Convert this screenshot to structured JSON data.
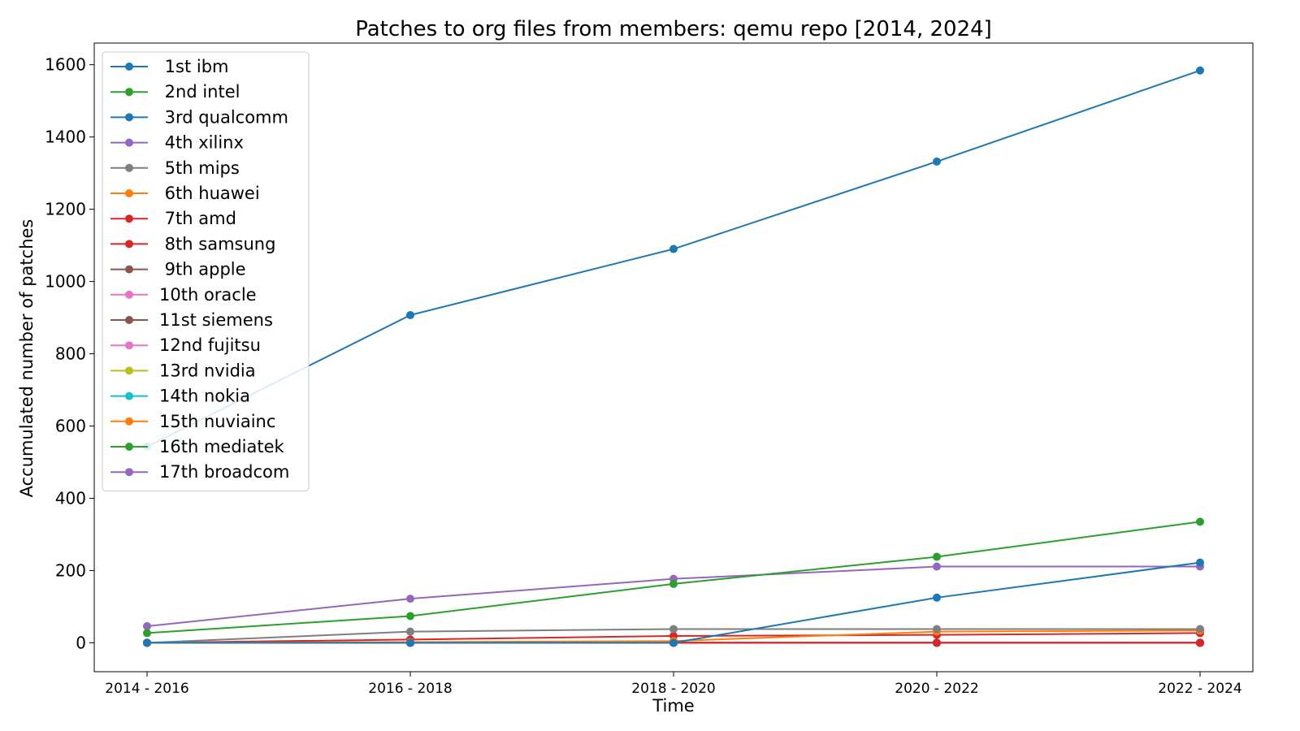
{
  "chart_data": {
    "type": "line",
    "title": "Patches to org files from members: qemu repo [2014, 2024]",
    "xlabel": "Time",
    "ylabel": "Accumulated number of patches",
    "categories": [
      "2014 - 2016",
      "2016 - 2018",
      "2018 - 2020",
      "2020 - 2022",
      "2022 - 2024"
    ],
    "ylim": [
      -80,
      1660
    ],
    "yticks": [
      0,
      200,
      400,
      600,
      800,
      1000,
      1200,
      1400,
      1600
    ],
    "grid": false,
    "legend_position": "upper-left",
    "series": [
      {
        "name": " 1st ibm",
        "color": "#1f77b4",
        "values": [
          543,
          907,
          1090,
          1332,
          1584
        ]
      },
      {
        "name": " 2nd intel",
        "color": "#2ca02c",
        "values": [
          27,
          74,
          163,
          238,
          335
        ]
      },
      {
        "name": " 3rd qualcomm",
        "color": "#1f77b4",
        "values": [
          0,
          0,
          0,
          125,
          222
        ]
      },
      {
        "name": " 4th xilinx",
        "color": "#9467bd",
        "values": [
          46,
          122,
          177,
          211,
          211
        ]
      },
      {
        "name": " 5th mips",
        "color": "#7f7f7f",
        "values": [
          0,
          31,
          38,
          38,
          38
        ]
      },
      {
        "name": " 6th huawei",
        "color": "#ff7f0e",
        "values": [
          0,
          2,
          5,
          31,
          34
        ]
      },
      {
        "name": " 7th amd",
        "color": "#d62728",
        "values": [
          0,
          9,
          19,
          22,
          27
        ]
      },
      {
        "name": " 8th samsung",
        "color": "#d62728",
        "values": [
          0,
          0,
          0,
          0,
          0
        ]
      },
      {
        "name": " 9th apple",
        "color": "#8c564b",
        "values": [
          0,
          0,
          0,
          0,
          0
        ]
      },
      {
        "name": "10th oracle",
        "color": "#e377c2",
        "values": [
          0,
          0,
          0,
          0,
          0
        ]
      },
      {
        "name": "11st siemens",
        "color": "#8c564b",
        "values": [
          0,
          0,
          0,
          0,
          0
        ]
      },
      {
        "name": "12nd fujitsu",
        "color": "#e377c2",
        "values": [
          0,
          0,
          0,
          0,
          0
        ]
      },
      {
        "name": "13rd nvidia",
        "color": "#bcbd22",
        "values": [
          0,
          0,
          0,
          0,
          0
        ]
      },
      {
        "name": "14th nokia",
        "color": "#17becf",
        "values": [
          0,
          0,
          0,
          0,
          0
        ]
      },
      {
        "name": "15th nuviainc",
        "color": "#ff7f0e",
        "values": [
          0,
          0,
          0,
          0,
          0
        ]
      },
      {
        "name": "16th mediatek",
        "color": "#2ca02c",
        "values": [
          0,
          0,
          0,
          0,
          0
        ]
      },
      {
        "name": "17th broadcom",
        "color": "#9467bd",
        "values": [
          0,
          0,
          0,
          0,
          0
        ]
      }
    ]
  }
}
